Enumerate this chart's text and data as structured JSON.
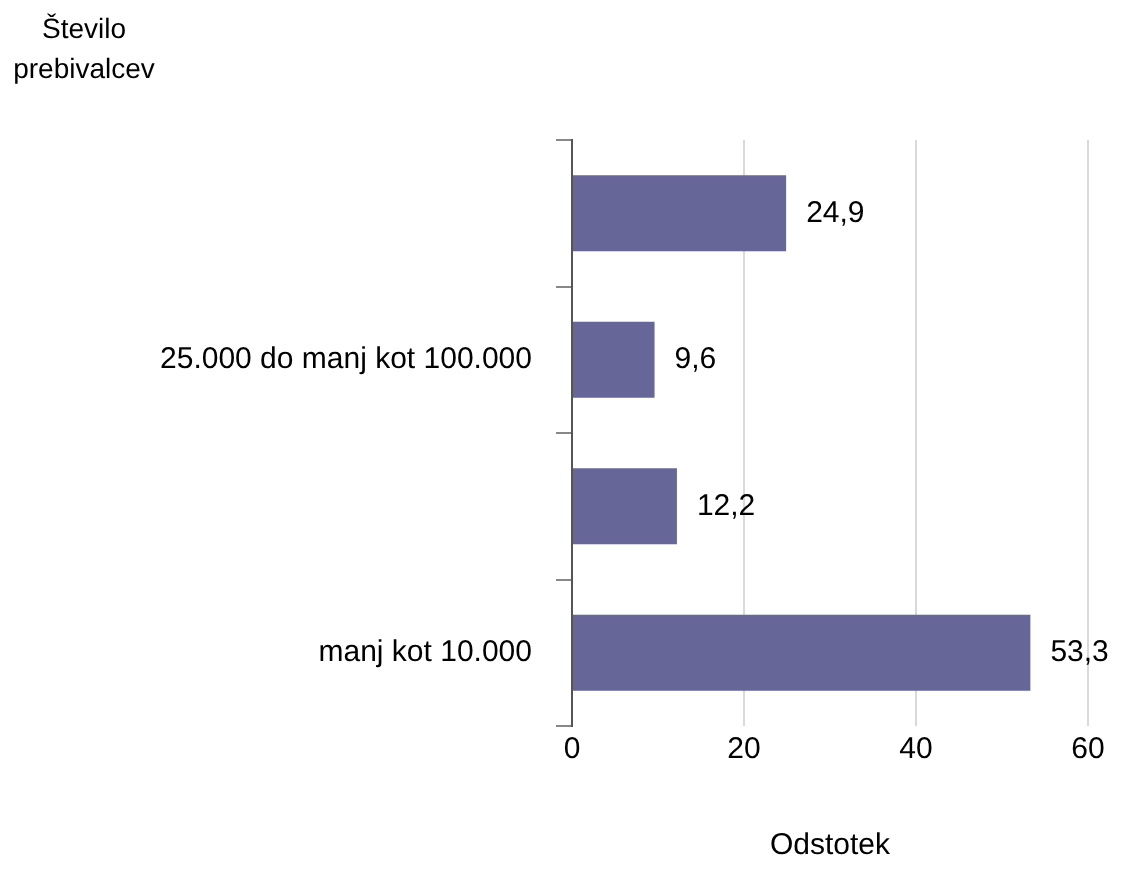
{
  "chart_data": {
    "type": "bar",
    "orientation": "horizontal",
    "ylabel": "Število prebivalcev",
    "xlabel": "Odstotek",
    "categories": [
      null,
      "25.000 do manj kot 100.000",
      null,
      "manj kot 10.000"
    ],
    "values": [
      24.9,
      9.6,
      12.2,
      53.3
    ],
    "value_labels": [
      "24,9",
      "9,6",
      "12,2",
      "53,3"
    ],
    "color": "#666699",
    "xlim": [
      0,
      60
    ],
    "xticks": [
      0,
      20,
      40,
      60
    ],
    "grid": "x",
    "legend": false
  }
}
